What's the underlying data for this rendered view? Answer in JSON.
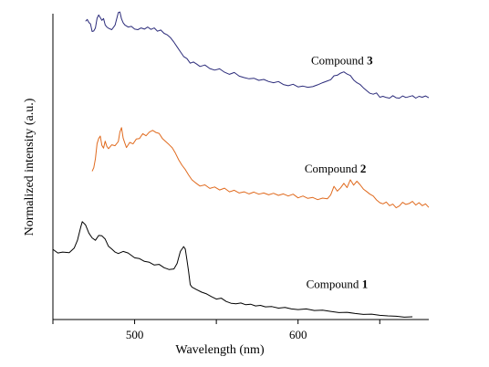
{
  "chart_data": {
    "type": "line",
    "title": "",
    "xlabel": "Wavelength (nm)",
    "ylabel": "Normalized intensity (a.u.)",
    "xlim": [
      450,
      680
    ],
    "ylim": [
      0,
      1
    ],
    "x_ticks": [
      {
        "value": 450,
        "label": ""
      },
      {
        "value": 500,
        "label": "500"
      },
      {
        "value": 550,
        "label": ""
      },
      {
        "value": 600,
        "label": "600"
      },
      {
        "value": 650,
        "label": ""
      }
    ],
    "grid": false,
    "legend": "none; series labelled inline",
    "series": [
      {
        "name": "Compound 1",
        "label_text": "Compound ",
        "label_num": "1",
        "color": "#000000",
        "label_at": [
          605,
          0.105
        ],
        "points": [
          [
            450,
            0.233
          ],
          [
            453,
            0.221
          ],
          [
            456,
            0.224
          ],
          [
            460,
            0.222
          ],
          [
            463,
            0.237
          ],
          [
            465,
            0.263
          ],
          [
            467,
            0.307
          ],
          [
            468,
            0.325
          ],
          [
            470,
            0.314
          ],
          [
            472,
            0.287
          ],
          [
            474,
            0.271
          ],
          [
            476,
            0.263
          ],
          [
            478,
            0.279
          ],
          [
            480,
            0.278
          ],
          [
            482,
            0.267
          ],
          [
            484,
            0.243
          ],
          [
            486,
            0.234
          ],
          [
            488,
            0.224
          ],
          [
            490,
            0.219
          ],
          [
            493,
            0.226
          ],
          [
            496,
            0.221
          ],
          [
            500,
            0.205
          ],
          [
            503,
            0.202
          ],
          [
            506,
            0.193
          ],
          [
            509,
            0.19
          ],
          [
            512,
            0.181
          ],
          [
            515,
            0.183
          ],
          [
            518,
            0.172
          ],
          [
            521,
            0.166
          ],
          [
            524,
            0.168
          ],
          [
            526,
            0.186
          ],
          [
            528,
            0.226
          ],
          [
            530,
            0.242
          ],
          [
            531,
            0.234
          ],
          [
            532,
            0.198
          ],
          [
            533,
            0.16
          ],
          [
            534,
            0.116
          ],
          [
            535,
            0.108
          ],
          [
            538,
            0.099
          ],
          [
            541,
            0.091
          ],
          [
            544,
            0.085
          ],
          [
            547,
            0.076
          ],
          [
            550,
            0.068
          ],
          [
            553,
            0.071
          ],
          [
            556,
            0.06
          ],
          [
            559,
            0.054
          ],
          [
            562,
            0.052
          ],
          [
            565,
            0.055
          ],
          [
            568,
            0.049
          ],
          [
            571,
            0.051
          ],
          [
            574,
            0.045
          ],
          [
            577,
            0.047
          ],
          [
            580,
            0.042
          ],
          [
            584,
            0.043
          ],
          [
            588,
            0.038
          ],
          [
            592,
            0.04
          ],
          [
            596,
            0.035
          ],
          [
            600,
            0.033
          ],
          [
            605,
            0.035
          ],
          [
            610,
            0.03
          ],
          [
            615,
            0.031
          ],
          [
            620,
            0.027
          ],
          [
            625,
            0.023
          ],
          [
            630,
            0.024
          ],
          [
            635,
            0.02
          ],
          [
            640,
            0.017
          ],
          [
            645,
            0.018
          ],
          [
            650,
            0.014
          ],
          [
            655,
            0.012
          ],
          [
            660,
            0.011
          ],
          [
            665,
            0.008
          ],
          [
            670,
            0.009
          ]
        ]
      },
      {
        "name": "Compound 2",
        "label_text": "Compound ",
        "label_num": "2",
        "color": "#e06a1e",
        "label_at": [
          604,
          0.488
        ],
        "points": [
          [
            474,
            0.492
          ],
          [
            475,
            0.504
          ],
          [
            476,
            0.534
          ],
          [
            477,
            0.584
          ],
          [
            478,
            0.601
          ],
          [
            479,
            0.609
          ],
          [
            480,
            0.578
          ],
          [
            481,
            0.569
          ],
          [
            482,
            0.592
          ],
          [
            483,
            0.575
          ],
          [
            484,
            0.567
          ],
          [
            486,
            0.58
          ],
          [
            488,
            0.577
          ],
          [
            490,
            0.591
          ],
          [
            491,
            0.622
          ],
          [
            492,
            0.637
          ],
          [
            493,
            0.602
          ],
          [
            494,
            0.586
          ],
          [
            495,
            0.571
          ],
          [
            497,
            0.588
          ],
          [
            499,
            0.583
          ],
          [
            501,
            0.599
          ],
          [
            503,
            0.601
          ],
          [
            505,
            0.617
          ],
          [
            507,
            0.61
          ],
          [
            509,
            0.622
          ],
          [
            511,
            0.628
          ],
          [
            513,
            0.621
          ],
          [
            515,
            0.618
          ],
          [
            517,
            0.601
          ],
          [
            519,
            0.591
          ],
          [
            521,
            0.581
          ],
          [
            523,
            0.57
          ],
          [
            525,
            0.552
          ],
          [
            527,
            0.53
          ],
          [
            529,
            0.512
          ],
          [
            531,
            0.498
          ],
          [
            533,
            0.48
          ],
          [
            535,
            0.464
          ],
          [
            537,
            0.455
          ],
          [
            540,
            0.443
          ],
          [
            543,
            0.447
          ],
          [
            546,
            0.435
          ],
          [
            549,
            0.44
          ],
          [
            552,
            0.43
          ],
          [
            555,
            0.436
          ],
          [
            558,
            0.424
          ],
          [
            561,
            0.429
          ],
          [
            564,
            0.42
          ],
          [
            567,
            0.424
          ],
          [
            570,
            0.417
          ],
          [
            573,
            0.423
          ],
          [
            576,
            0.416
          ],
          [
            579,
            0.42
          ],
          [
            582,
            0.414
          ],
          [
            585,
            0.419
          ],
          [
            588,
            0.412
          ],
          [
            591,
            0.417
          ],
          [
            594,
            0.41
          ],
          [
            597,
            0.416
          ],
          [
            600,
            0.404
          ],
          [
            603,
            0.41
          ],
          [
            606,
            0.402
          ],
          [
            609,
            0.405
          ],
          [
            612,
            0.398
          ],
          [
            615,
            0.403
          ],
          [
            618,
            0.401
          ],
          [
            620,
            0.414
          ],
          [
            622,
            0.442
          ],
          [
            624,
            0.426
          ],
          [
            626,
            0.437
          ],
          [
            628,
            0.452
          ],
          [
            630,
            0.438
          ],
          [
            632,
            0.464
          ],
          [
            634,
            0.446
          ],
          [
            636,
            0.459
          ],
          [
            638,
            0.447
          ],
          [
            640,
            0.433
          ],
          [
            642,
            0.425
          ],
          [
            644,
            0.416
          ],
          [
            646,
            0.41
          ],
          [
            648,
            0.397
          ],
          [
            650,
            0.388
          ],
          [
            652,
            0.384
          ],
          [
            654,
            0.39
          ],
          [
            656,
            0.378
          ],
          [
            658,
            0.383
          ],
          [
            660,
            0.371
          ],
          [
            662,
            0.377
          ],
          [
            664,
            0.389
          ],
          [
            666,
            0.382
          ],
          [
            668,
            0.385
          ],
          [
            670,
            0.392
          ],
          [
            672,
            0.38
          ],
          [
            674,
            0.388
          ],
          [
            676,
            0.378
          ],
          [
            678,
            0.384
          ],
          [
            680,
            0.372
          ]
        ]
      },
      {
        "name": "Compound 3",
        "label_text": "Compound ",
        "label_num": "3",
        "color": "#2b2b7a",
        "label_at": [
          608,
          0.847
        ],
        "points": [
          [
            470,
            0.99
          ],
          [
            471,
            0.996
          ],
          [
            472,
            0.986
          ],
          [
            473,
            0.981
          ],
          [
            474,
            0.956
          ],
          [
            475,
            0.958
          ],
          [
            476,
            0.968
          ],
          [
            477,
            1.0
          ],
          [
            478,
            1.011
          ],
          [
            479,
            1.002
          ],
          [
            480,
            0.993
          ],
          [
            481,
            0.999
          ],
          [
            482,
            0.978
          ],
          [
            483,
            0.971
          ],
          [
            484,
            0.967
          ],
          [
            486,
            0.962
          ],
          [
            488,
            0.977
          ],
          [
            490,
            1.019
          ],
          [
            491,
            1.021
          ],
          [
            492,
            0.998
          ],
          [
            493,
            0.985
          ],
          [
            494,
            0.978
          ],
          [
            496,
            0.971
          ],
          [
            498,
            0.973
          ],
          [
            500,
            0.964
          ],
          [
            502,
            0.962
          ],
          [
            504,
            0.968
          ],
          [
            506,
            0.964
          ],
          [
            508,
            0.971
          ],
          [
            510,
            0.963
          ],
          [
            512,
            0.968
          ],
          [
            514,
            0.957
          ],
          [
            516,
            0.961
          ],
          [
            518,
            0.95
          ],
          [
            520,
            0.945
          ],
          [
            522,
            0.935
          ],
          [
            524,
            0.921
          ],
          [
            526,
            0.905
          ],
          [
            528,
            0.889
          ],
          [
            530,
            0.873
          ],
          [
            532,
            0.866
          ],
          [
            534,
            0.851
          ],
          [
            536,
            0.855
          ],
          [
            538,
            0.848
          ],
          [
            540,
            0.84
          ],
          [
            543,
            0.845
          ],
          [
            546,
            0.833
          ],
          [
            549,
            0.828
          ],
          [
            552,
            0.832
          ],
          [
            555,
            0.821
          ],
          [
            558,
            0.814
          ],
          [
            561,
            0.82
          ],
          [
            564,
            0.808
          ],
          [
            567,
            0.803
          ],
          [
            570,
            0.799
          ],
          [
            573,
            0.801
          ],
          [
            576,
            0.794
          ],
          [
            579,
            0.797
          ],
          [
            582,
            0.79
          ],
          [
            585,
            0.786
          ],
          [
            588,
            0.79
          ],
          [
            591,
            0.78
          ],
          [
            594,
            0.776
          ],
          [
            597,
            0.781
          ],
          [
            600,
            0.772
          ],
          [
            603,
            0.775
          ],
          [
            606,
            0.771
          ],
          [
            609,
            0.773
          ],
          [
            612,
            0.779
          ],
          [
            615,
            0.786
          ],
          [
            618,
            0.792
          ],
          [
            620,
            0.796
          ],
          [
            622,
            0.809
          ],
          [
            624,
            0.811
          ],
          [
            626,
            0.818
          ],
          [
            628,
            0.822
          ],
          [
            630,
            0.815
          ],
          [
            632,
            0.81
          ],
          [
            634,
            0.795
          ],
          [
            636,
            0.786
          ],
          [
            638,
            0.78
          ],
          [
            640,
            0.769
          ],
          [
            642,
            0.76
          ],
          [
            644,
            0.751
          ],
          [
            646,
            0.748
          ],
          [
            648,
            0.752
          ],
          [
            650,
            0.738
          ],
          [
            652,
            0.741
          ],
          [
            654,
            0.737
          ],
          [
            656,
            0.735
          ],
          [
            658,
            0.743
          ],
          [
            660,
            0.736
          ],
          [
            662,
            0.735
          ],
          [
            664,
            0.742
          ],
          [
            666,
            0.737
          ],
          [
            668,
            0.74
          ],
          [
            670,
            0.743
          ],
          [
            672,
            0.735
          ],
          [
            674,
            0.741
          ],
          [
            676,
            0.738
          ],
          [
            678,
            0.742
          ],
          [
            680,
            0.736
          ]
        ]
      }
    ]
  }
}
